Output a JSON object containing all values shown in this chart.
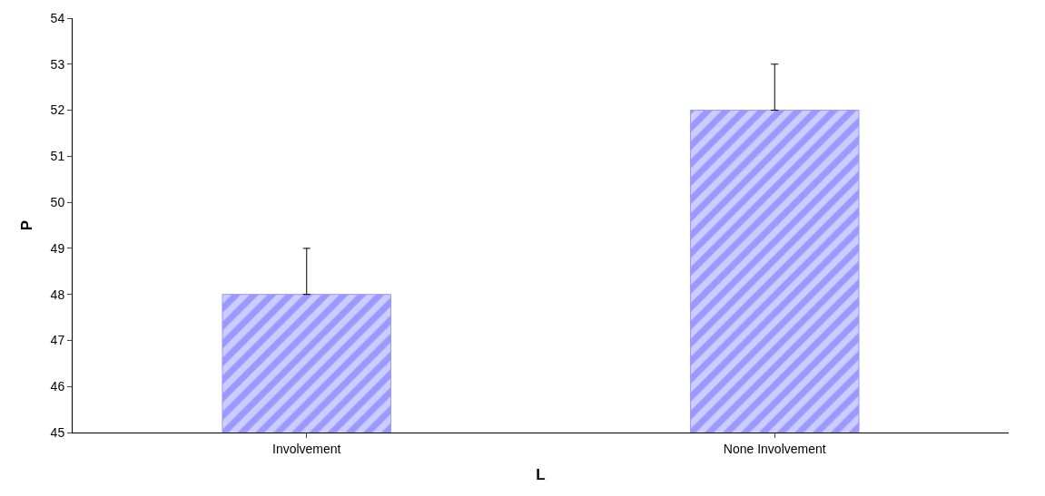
{
  "chart_data": {
    "type": "bar",
    "xlabel": "L",
    "ylabel": "P",
    "categories": [
      "Involvement",
      "None Involvement"
    ],
    "values": [
      48,
      52
    ],
    "errors": [
      [
        48,
        49
      ],
      [
        52,
        53
      ]
    ],
    "color": "#9999ff",
    "ylim": [
      45,
      54
    ],
    "yticks": [
      45,
      46,
      47,
      48,
      49,
      50,
      51,
      52,
      53,
      54
    ],
    "grid": false,
    "legend": false
  }
}
